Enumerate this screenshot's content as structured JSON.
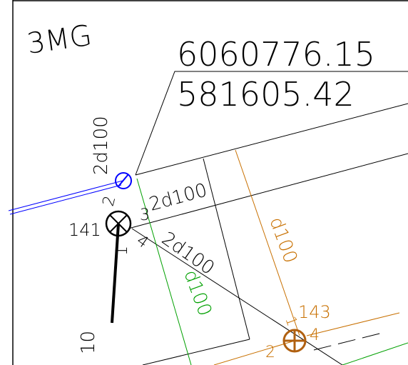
{
  "labels": {
    "site": "3MG",
    "northing": "6060776.15",
    "easting": "581605.42",
    "pipe_blue": "2d100",
    "pipe_top": "2d100",
    "pipe_diag": "2d100",
    "pipe_orange": "d100",
    "pipe_green": "d100",
    "node_black": "141",
    "node_orange": "143",
    "black_in_2": "2",
    "black_out_3": "3",
    "black_out_4": "4",
    "black_line_1": "1",
    "orange_in_1": "1",
    "orange_in_2": "2",
    "orange_out_4": "4",
    "lead_10": "10"
  }
}
